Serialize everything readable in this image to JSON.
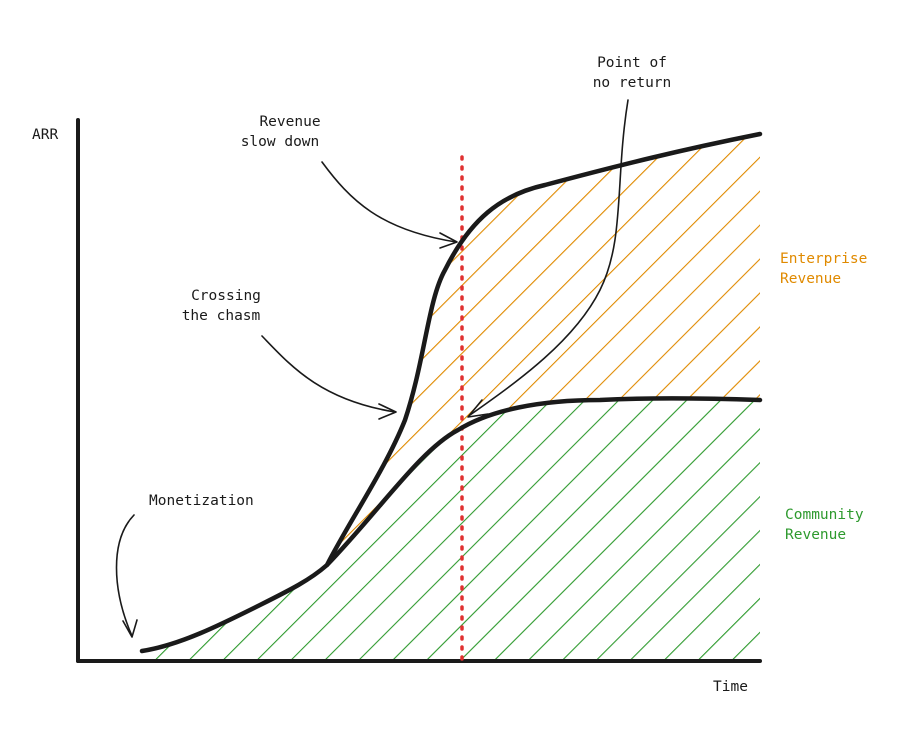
{
  "axes": {
    "y_label": "ARR",
    "x_label": "Time"
  },
  "annotations": {
    "point_of_no_return": [
      "Point of",
      "no return"
    ],
    "revenue_slow_down": [
      "Revenue",
      "slow down"
    ],
    "crossing_the_chasm": [
      "Crossing",
      "the chasm"
    ],
    "monetization": "Monetization"
  },
  "legend": {
    "enterprise": [
      "Enterprise",
      "Revenue"
    ],
    "community": [
      "Community",
      "Revenue"
    ]
  },
  "colors": {
    "enterprise": "#e08a00",
    "community": "#2e9a2e",
    "marker_line": "#e03030",
    "ink": "#1a1a1a"
  }
}
